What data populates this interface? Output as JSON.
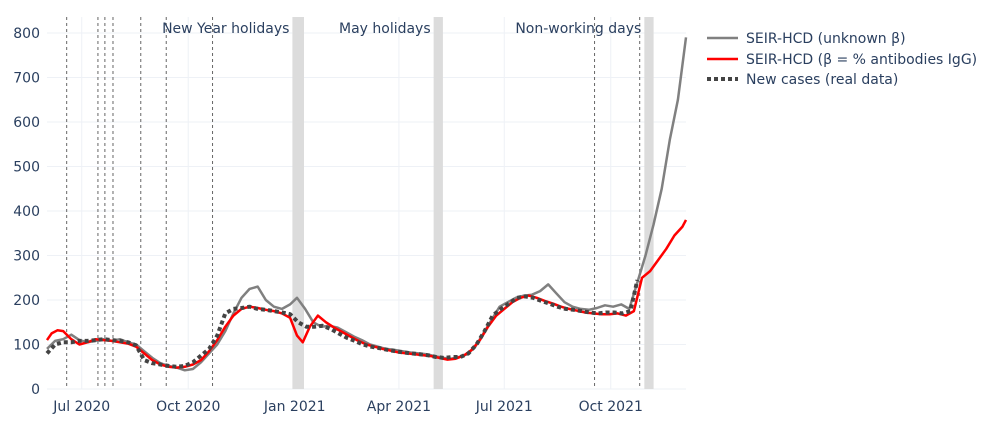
{
  "colors": {
    "unknown_beta": "#808080",
    "antibodies_igg": "#ff0000",
    "real_data": "#444444",
    "grid": "#eef1f6",
    "shade": "#dcdcdc",
    "text": "#2a3f5f"
  },
  "chart_data": {
    "type": "line",
    "title": "",
    "xlabel": "",
    "ylabel": "",
    "xlim": [
      "2020-06-01",
      "2021-11-30"
    ],
    "ylim": [
      0,
      800
    ],
    "grid": true,
    "legend_position": "top-right",
    "y_ticks": [
      0,
      100,
      200,
      300,
      400,
      500,
      600,
      700,
      800
    ],
    "x_ticks": [
      {
        "date": "2020-07-01",
        "label": "Jul 2020"
      },
      {
        "date": "2020-10-01",
        "label": "Oct 2020"
      },
      {
        "date": "2021-01-01",
        "label": "Jan 2021"
      },
      {
        "date": "2021-04-01",
        "label": "Apr 2021"
      },
      {
        "date": "2021-07-01",
        "label": "Jul 2021"
      },
      {
        "date": "2021-10-01",
        "label": "Oct 2021"
      }
    ],
    "vertical_lines": [
      "2020-06-18",
      "2020-07-15",
      "2020-07-21",
      "2020-07-28",
      "2020-08-21",
      "2020-09-12",
      "2020-10-22",
      "2021-09-17",
      "2021-10-26"
    ],
    "shaded_periods": [
      {
        "start": "2020-12-30",
        "end": "2021-01-09",
        "label": "New Year holidays"
      },
      {
        "start": "2021-05-01",
        "end": "2021-05-09",
        "label": "May holidays"
      },
      {
        "start": "2021-10-30",
        "end": "2021-11-07",
        "label": "Non-working days"
      }
    ],
    "series": [
      {
        "name": "SEIR-HCD (unknown β)",
        "style": "solid",
        "points": [
          [
            "2020-06-01",
            90
          ],
          [
            "2020-06-08",
            108
          ],
          [
            "2020-06-15",
            112
          ],
          [
            "2020-06-22",
            122
          ],
          [
            "2020-06-29",
            110
          ],
          [
            "2020-07-06",
            105
          ],
          [
            "2020-07-13",
            108
          ],
          [
            "2020-07-20",
            112
          ],
          [
            "2020-07-27",
            108
          ],
          [
            "2020-08-03",
            112
          ],
          [
            "2020-08-10",
            105
          ],
          [
            "2020-08-17",
            100
          ],
          [
            "2020-08-24",
            85
          ],
          [
            "2020-08-31",
            70
          ],
          [
            "2020-09-07",
            58
          ],
          [
            "2020-09-14",
            52
          ],
          [
            "2020-09-21",
            48
          ],
          [
            "2020-09-28",
            42
          ],
          [
            "2020-10-05",
            45
          ],
          [
            "2020-10-12",
            60
          ],
          [
            "2020-10-19",
            80
          ],
          [
            "2020-10-26",
            100
          ],
          [
            "2020-11-02",
            130
          ],
          [
            "2020-11-09",
            170
          ],
          [
            "2020-11-16",
            205
          ],
          [
            "2020-11-23",
            225
          ],
          [
            "2020-11-30",
            230
          ],
          [
            "2020-12-07",
            200
          ],
          [
            "2020-12-14",
            185
          ],
          [
            "2020-12-21",
            180
          ],
          [
            "2020-12-28",
            190
          ],
          [
            "2021-01-03",
            205
          ],
          [
            "2021-01-10",
            180
          ],
          [
            "2021-01-17",
            150
          ],
          [
            "2021-01-24",
            140
          ],
          [
            "2021-01-31",
            142
          ],
          [
            "2021-02-07",
            138
          ],
          [
            "2021-02-14",
            128
          ],
          [
            "2021-02-21",
            118
          ],
          [
            "2021-02-28",
            110
          ],
          [
            "2021-03-07",
            100
          ],
          [
            "2021-03-14",
            95
          ],
          [
            "2021-03-21",
            90
          ],
          [
            "2021-03-28",
            88
          ],
          [
            "2021-04-04",
            85
          ],
          [
            "2021-04-11",
            82
          ],
          [
            "2021-04-18",
            80
          ],
          [
            "2021-04-25",
            78
          ],
          [
            "2021-05-02",
            74
          ],
          [
            "2021-05-09",
            70
          ],
          [
            "2021-05-16",
            68
          ],
          [
            "2021-05-23",
            72
          ],
          [
            "2021-05-30",
            78
          ],
          [
            "2021-06-06",
            95
          ],
          [
            "2021-06-13",
            125
          ],
          [
            "2021-06-20",
            155
          ],
          [
            "2021-06-27",
            185
          ],
          [
            "2021-07-04",
            195
          ],
          [
            "2021-07-11",
            205
          ],
          [
            "2021-07-18",
            210
          ],
          [
            "2021-07-25",
            212
          ],
          [
            "2021-08-01",
            220
          ],
          [
            "2021-08-08",
            235
          ],
          [
            "2021-08-15",
            215
          ],
          [
            "2021-08-22",
            195
          ],
          [
            "2021-08-29",
            185
          ],
          [
            "2021-09-05",
            180
          ],
          [
            "2021-09-12",
            178
          ],
          [
            "2021-09-19",
            182
          ],
          [
            "2021-09-26",
            188
          ],
          [
            "2021-10-03",
            185
          ],
          [
            "2021-10-10",
            190
          ],
          [
            "2021-10-17",
            180
          ],
          [
            "2021-10-24",
            240
          ],
          [
            "2021-10-31",
            300
          ],
          [
            "2021-11-07",
            370
          ],
          [
            "2021-11-14",
            450
          ],
          [
            "2021-11-21",
            560
          ],
          [
            "2021-11-28",
            650
          ],
          [
            "2021-12-05",
            790
          ]
        ]
      },
      {
        "name": "SEIR-HCD (β = % antibodies IgG)",
        "style": "solid",
        "points": [
          [
            "2020-06-01",
            110
          ],
          [
            "2020-06-05",
            125
          ],
          [
            "2020-06-10",
            132
          ],
          [
            "2020-06-15",
            130
          ],
          [
            "2020-06-22",
            112
          ],
          [
            "2020-06-29",
            100
          ],
          [
            "2020-07-06",
            105
          ],
          [
            "2020-07-13",
            112
          ],
          [
            "2020-07-20",
            110
          ],
          [
            "2020-07-27",
            108
          ],
          [
            "2020-08-03",
            105
          ],
          [
            "2020-08-10",
            102
          ],
          [
            "2020-08-17",
            95
          ],
          [
            "2020-08-24",
            80
          ],
          [
            "2020-08-31",
            65
          ],
          [
            "2020-09-07",
            55
          ],
          [
            "2020-09-14",
            50
          ],
          [
            "2020-09-21",
            48
          ],
          [
            "2020-09-28",
            50
          ],
          [
            "2020-10-05",
            55
          ],
          [
            "2020-10-12",
            65
          ],
          [
            "2020-10-19",
            85
          ],
          [
            "2020-10-26",
            110
          ],
          [
            "2020-11-02",
            140
          ],
          [
            "2020-11-09",
            165
          ],
          [
            "2020-11-16",
            180
          ],
          [
            "2020-11-23",
            185
          ],
          [
            "2020-11-30",
            182
          ],
          [
            "2020-12-07",
            178
          ],
          [
            "2020-12-14",
            175
          ],
          [
            "2020-12-21",
            170
          ],
          [
            "2020-12-28",
            160
          ],
          [
            "2021-01-03",
            120
          ],
          [
            "2021-01-08",
            105
          ],
          [
            "2021-01-14",
            140
          ],
          [
            "2021-01-21",
            165
          ],
          [
            "2021-01-28",
            150
          ],
          [
            "2021-02-04",
            138
          ],
          [
            "2021-02-11",
            128
          ],
          [
            "2021-02-18",
            118
          ],
          [
            "2021-02-25",
            108
          ],
          [
            "2021-03-04",
            100
          ],
          [
            "2021-03-11",
            95
          ],
          [
            "2021-03-18",
            90
          ],
          [
            "2021-03-25",
            86
          ],
          [
            "2021-04-01",
            82
          ],
          [
            "2021-04-08",
            80
          ],
          [
            "2021-04-15",
            78
          ],
          [
            "2021-04-22",
            76
          ],
          [
            "2021-04-29",
            74
          ],
          [
            "2021-05-06",
            70
          ],
          [
            "2021-05-13",
            66
          ],
          [
            "2021-05-20",
            68
          ],
          [
            "2021-05-27",
            75
          ],
          [
            "2021-06-03",
            88
          ],
          [
            "2021-06-10",
            110
          ],
          [
            "2021-06-17",
            140
          ],
          [
            "2021-06-24",
            165
          ],
          [
            "2021-07-01",
            180
          ],
          [
            "2021-07-08",
            195
          ],
          [
            "2021-07-15",
            205
          ],
          [
            "2021-07-22",
            210
          ],
          [
            "2021-07-29",
            205
          ],
          [
            "2021-08-05",
            198
          ],
          [
            "2021-08-12",
            192
          ],
          [
            "2021-08-19",
            185
          ],
          [
            "2021-08-26",
            180
          ],
          [
            "2021-09-02",
            176
          ],
          [
            "2021-09-09",
            172
          ],
          [
            "2021-09-16",
            170
          ],
          [
            "2021-09-23",
            168
          ],
          [
            "2021-09-30",
            168
          ],
          [
            "2021-10-07",
            170
          ],
          [
            "2021-10-14",
            165
          ],
          [
            "2021-10-21",
            175
          ],
          [
            "2021-10-28",
            250
          ],
          [
            "2021-11-04",
            265
          ],
          [
            "2021-11-11",
            290
          ],
          [
            "2021-11-18",
            315
          ],
          [
            "2021-11-25",
            345
          ],
          [
            "2021-12-02",
            365
          ],
          [
            "2021-12-05",
            380
          ]
        ]
      },
      {
        "name": "New cases (real data)",
        "style": "dotted",
        "points": [
          [
            "2020-06-01",
            80
          ],
          [
            "2020-06-08",
            100
          ],
          [
            "2020-06-15",
            105
          ],
          [
            "2020-06-22",
            105
          ],
          [
            "2020-06-29",
            108
          ],
          [
            "2020-07-06",
            108
          ],
          [
            "2020-07-13",
            110
          ],
          [
            "2020-07-20",
            112
          ],
          [
            "2020-07-27",
            110
          ],
          [
            "2020-08-03",
            108
          ],
          [
            "2020-08-10",
            105
          ],
          [
            "2020-08-17",
            98
          ],
          [
            "2020-08-24",
            65
          ],
          [
            "2020-08-31",
            58
          ],
          [
            "2020-09-07",
            55
          ],
          [
            "2020-09-14",
            52
          ],
          [
            "2020-09-21",
            50
          ],
          [
            "2020-09-28",
            52
          ],
          [
            "2020-10-05",
            60
          ],
          [
            "2020-10-12",
            75
          ],
          [
            "2020-10-19",
            90
          ],
          [
            "2020-10-26",
            120
          ],
          [
            "2020-11-02",
            170
          ],
          [
            "2020-11-09",
            180
          ],
          [
            "2020-11-16",
            182
          ],
          [
            "2020-11-23",
            185
          ],
          [
            "2020-11-30",
            180
          ],
          [
            "2020-12-07",
            178
          ],
          [
            "2020-12-14",
            175
          ],
          [
            "2020-12-21",
            172
          ],
          [
            "2020-12-28",
            168
          ],
          [
            "2021-01-04",
            150
          ],
          [
            "2021-01-11",
            140
          ],
          [
            "2021-01-18",
            140
          ],
          [
            "2021-01-25",
            142
          ],
          [
            "2021-02-01",
            135
          ],
          [
            "2021-02-08",
            125
          ],
          [
            "2021-02-15",
            115
          ],
          [
            "2021-02-22",
            108
          ],
          [
            "2021-03-01",
            100
          ],
          [
            "2021-03-08",
            95
          ],
          [
            "2021-03-15",
            92
          ],
          [
            "2021-03-22",
            88
          ],
          [
            "2021-03-29",
            85
          ],
          [
            "2021-04-05",
            82
          ],
          [
            "2021-04-12",
            80
          ],
          [
            "2021-04-19",
            78
          ],
          [
            "2021-04-26",
            76
          ],
          [
            "2021-05-03",
            72
          ],
          [
            "2021-05-10",
            70
          ],
          [
            "2021-05-17",
            72
          ],
          [
            "2021-05-24",
            72
          ],
          [
            "2021-05-31",
            80
          ],
          [
            "2021-06-07",
            100
          ],
          [
            "2021-06-14",
            130
          ],
          [
            "2021-06-21",
            165
          ],
          [
            "2021-06-28",
            180
          ],
          [
            "2021-07-05",
            192
          ],
          [
            "2021-07-12",
            205
          ],
          [
            "2021-07-19",
            208
          ],
          [
            "2021-07-26",
            205
          ],
          [
            "2021-08-02",
            198
          ],
          [
            "2021-08-09",
            192
          ],
          [
            "2021-08-16",
            185
          ],
          [
            "2021-08-23",
            180
          ],
          [
            "2021-08-30",
            178
          ],
          [
            "2021-09-06",
            175
          ],
          [
            "2021-09-13",
            172
          ],
          [
            "2021-09-20",
            170
          ],
          [
            "2021-09-27",
            172
          ],
          [
            "2021-10-04",
            172
          ],
          [
            "2021-10-11",
            170
          ],
          [
            "2021-10-18",
            175
          ],
          [
            "2021-10-24",
            245
          ]
        ]
      }
    ]
  }
}
